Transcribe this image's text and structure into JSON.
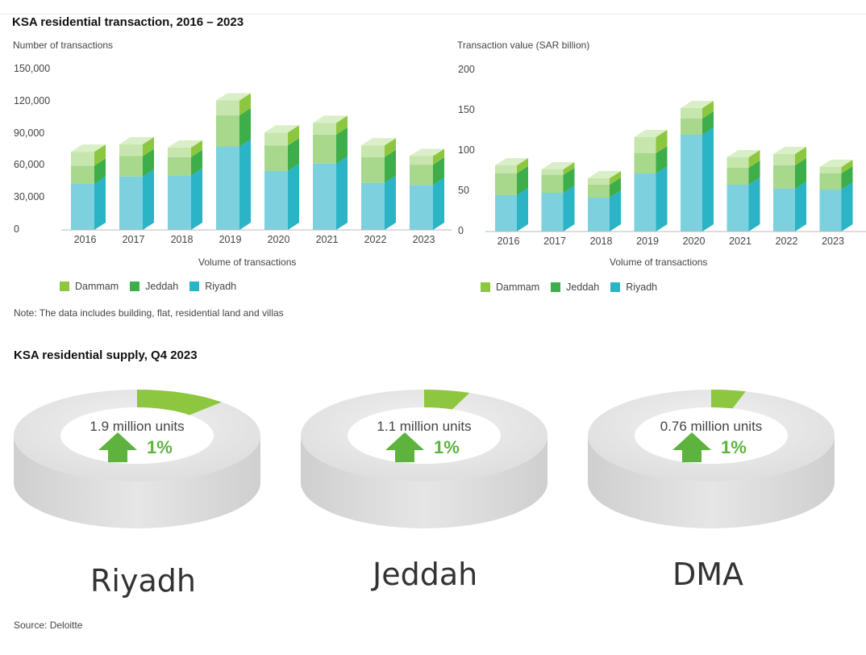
{
  "transactions_title": "KSA residential transaction, 2016 – 2023",
  "supply_title": "KSA residential supply, Q4 2023",
  "note": "Note: The data includes building, flat, residential land and villas",
  "source": "Source: Deloitte",
  "colors": {
    "dammam": "#8DC63F",
    "jeddah": "#3DAE49",
    "riyadh": "#2BB3C6"
  },
  "chart_data": [
    {
      "type": "bar",
      "stacked": true,
      "title": "Number of transactions",
      "ylabel": "Number of transactions",
      "xlabel": "Volume of transactions",
      "categories": [
        "2016",
        "2017",
        "2018",
        "2019",
        "2020",
        "2021",
        "2022",
        "2023"
      ],
      "ylim": [
        0,
        150000
      ],
      "ytick_labels": [
        "0",
        "30,000",
        "60,000",
        "90,000",
        "120,000",
        "150,000"
      ],
      "legend": [
        "Dammam",
        "Jeddah",
        "Riyadh"
      ],
      "series": [
        {
          "name": "Riyadh",
          "values": [
            43000,
            50000,
            51000,
            78000,
            55000,
            62000,
            44000,
            42000
          ]
        },
        {
          "name": "Jeddah",
          "values": [
            17000,
            19000,
            17000,
            29000,
            24000,
            27000,
            24000,
            19000
          ]
        },
        {
          "name": "Dammam",
          "values": [
            13000,
            11000,
            9000,
            14000,
            12000,
            11000,
            11000,
            8000
          ]
        }
      ]
    },
    {
      "type": "bar",
      "stacked": true,
      "title": "Transaction value (SAR billion)",
      "ylabel": "Transaction value (SAR billion)",
      "xlabel": "Volume of transactions",
      "categories": [
        "2016",
        "2017",
        "2018",
        "2019",
        "2020",
        "2021",
        "2022",
        "2023"
      ],
      "ylim": [
        0,
        200
      ],
      "ytick_labels": [
        "0",
        "50",
        "100",
        "150",
        "200"
      ],
      "legend": [
        "Dammam",
        "Jeddah",
        "Riyadh"
      ],
      "series": [
        {
          "name": "Riyadh",
          "values": [
            45,
            48,
            42,
            72,
            120,
            58,
            53,
            52
          ]
        },
        {
          "name": "Jeddah",
          "values": [
            27,
            22,
            16,
            25,
            20,
            21,
            29,
            20
          ]
        },
        {
          "name": "Dammam",
          "values": [
            10,
            7,
            8,
            20,
            13,
            13,
            14,
            8
          ]
        }
      ]
    },
    {
      "type": "pie",
      "title": "KSA residential supply, Q4 2023",
      "donuts": [
        {
          "city": "Riyadh",
          "units": "1.9 million units",
          "change": "1%",
          "share": 0.12
        },
        {
          "city": "Jeddah",
          "units": "1.1 million units",
          "change": "1%",
          "share": 0.06
        },
        {
          "city": "DMA",
          "units": "0.76 million units",
          "change": "1%",
          "share": 0.045
        }
      ]
    }
  ]
}
